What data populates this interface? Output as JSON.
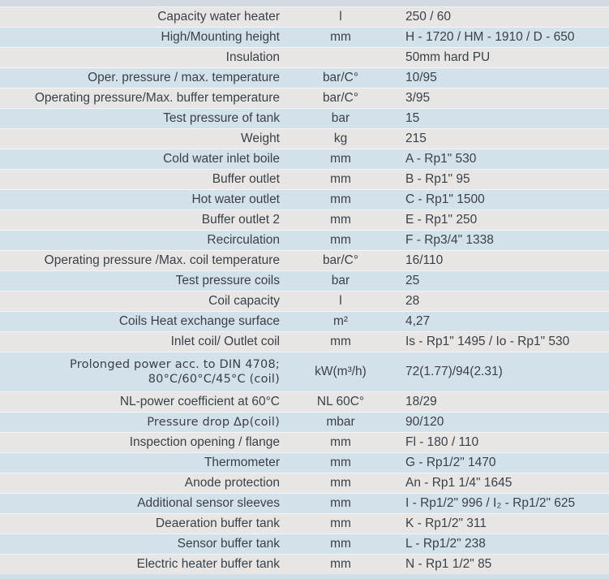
{
  "table": {
    "columns": [
      "parameter",
      "unit",
      "value"
    ],
    "colors": {
      "row_gray": "#e7e6e4",
      "row_blue": "#d3e1eb",
      "top_strip": "#d2dbe2",
      "bottom_strip": "#d0dfea",
      "separator": "#f3f4f6",
      "text": "#3b4148"
    },
    "rows": [
      {
        "label": "Capacity water heater",
        "unit": "l",
        "value": "250 / 60"
      },
      {
        "label": "High/Mounting height",
        "unit": "mm",
        "value": "H - 1720 / HM - 1910 / D - 650"
      },
      {
        "label": "Insulation",
        "unit": "",
        "value": "50mm hard PU"
      },
      {
        "label": "Oper. pressure / max. temperature",
        "unit": "bar/C°",
        "value": "10/95"
      },
      {
        "label": "Operating pressure/Max. buffer temperature",
        "unit": "bar/C°",
        "value": "3/95"
      },
      {
        "label": "Test pressure of tank",
        "unit": "bar",
        "value": "15"
      },
      {
        "label": "Weight",
        "unit": "kg",
        "value": "215"
      },
      {
        "label": "Cold water inlet boile",
        "unit": "mm",
        "value": "A - Rp1\" 530"
      },
      {
        "label": "Buffer outlet",
        "unit": "mm",
        "value": "B - Rp1\" 95"
      },
      {
        "label": "Hot water outlet",
        "unit": "mm",
        "value": "C - Rp1\" 1500"
      },
      {
        "label": "Buffer outlet 2",
        "unit": "mm",
        "value": "E - Rp1\" 250"
      },
      {
        "label": "Recirculation",
        "unit": "mm",
        "value": "F - Rp3/4\" 1338"
      },
      {
        "label": "Operating pressure /Max. coil temperature",
        "unit": "bar/C°",
        "value": "16/110"
      },
      {
        "label": "Test pressure coils",
        "unit": "bar",
        "value": "25"
      },
      {
        "label": "Coil capacity",
        "unit": "l",
        "value": "28"
      },
      {
        "label": "Coils Heat exchange surface",
        "unit": "m²",
        "value": "4,27"
      },
      {
        "label": "Inlet coil/ Outlet coil",
        "unit": "mm",
        "value": "Is - Rp1\" 1495 / Io - Rp1\" 530"
      },
      {
        "label": "Prolonged power acc. to DIN 4708; 80°C/60°C/45°C (coil)",
        "unit": "kW(m³/h)",
        "value": "72(1.77)/94(2.31)"
      },
      {
        "label": "NL-power coefficient at 60°C",
        "unit": "NL 60C°",
        "value": "18/29"
      },
      {
        "label": "Pressure drop Δp(coil)",
        "unit": "mbar",
        "value": "90/120"
      },
      {
        "label": "Inspection opening / flange",
        "unit": "mm",
        "value": "Fl - 180 / 110"
      },
      {
        "label": "Thermometer",
        "unit": "mm",
        "value": "G - Rp1/2\" 1470"
      },
      {
        "label": "Anode protection",
        "unit": "mm",
        "value": "An - Rp1 1/4\" 1645"
      },
      {
        "label": "Additional sensor sleeves",
        "unit": "mm",
        "value": "I - Rp1/2\" 996  / I₂ - Rp1/2\" 625"
      },
      {
        "label": "Deaeration buffer tank",
        "unit": "mm",
        "value": "K - Rp1/2\" 311"
      },
      {
        "label": "Sensor buffer tank",
        "unit": "mm",
        "value": "L - Rp1/2\" 238"
      },
      {
        "label": "Electric heater buffer tank",
        "unit": "mm",
        "value": "N - Rp1 1/2\" 85"
      }
    ]
  }
}
